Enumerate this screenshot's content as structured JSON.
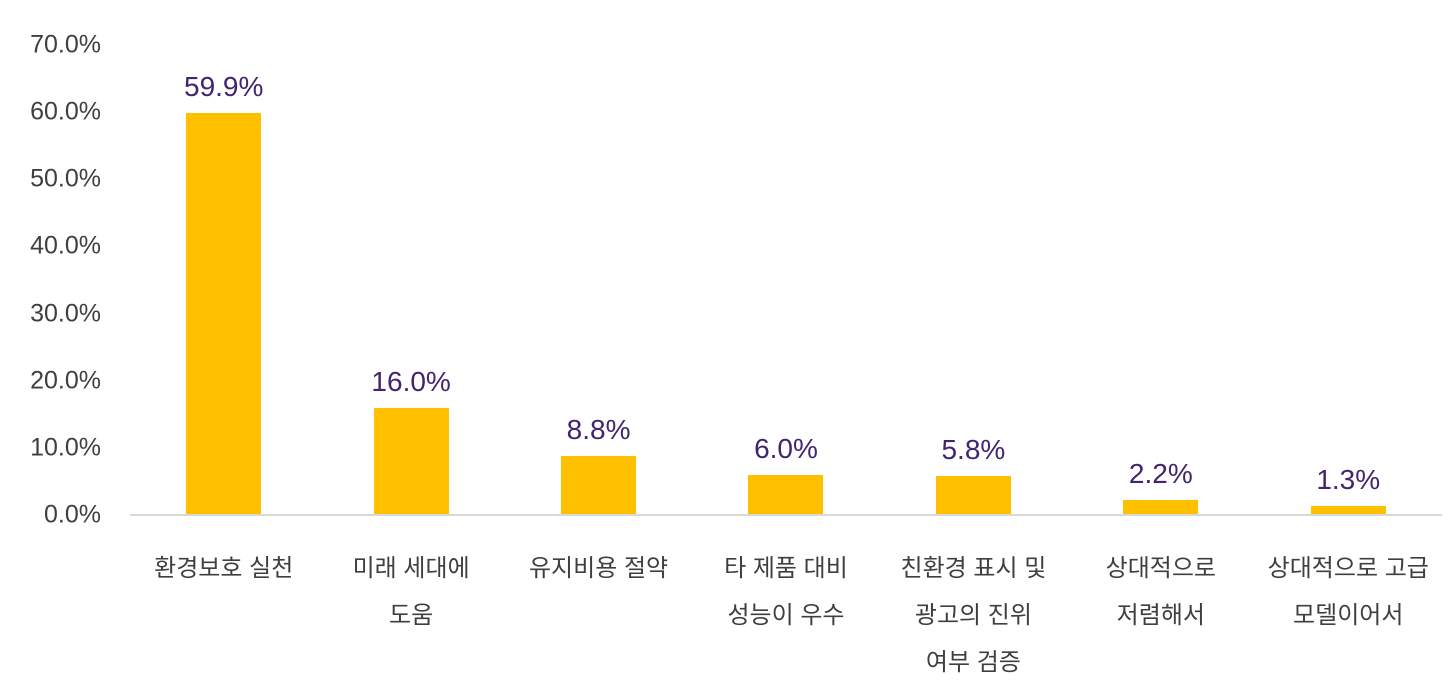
{
  "chart": {
    "colors": {
      "bar": "#FFC000",
      "value_label": "#43256F",
      "text": "#3F3F3F",
      "axis_line": "#D9D9D9"
    }
  },
  "chart_data": {
    "type": "bar",
    "title": "",
    "xlabel": "",
    "ylabel": "",
    "grid": false,
    "legend": false,
    "ylim": [
      0,
      70
    ],
    "y_ticks": [
      {
        "value": 70,
        "label": "70.0%"
      },
      {
        "value": 60,
        "label": "60.0%"
      },
      {
        "value": 50,
        "label": "50.0%"
      },
      {
        "value": 40,
        "label": "40.0%"
      },
      {
        "value": 30,
        "label": "30.0%"
      },
      {
        "value": 20,
        "label": "20.0%"
      },
      {
        "value": 10,
        "label": "10.0%"
      },
      {
        "value": 0,
        "label": "0.0%"
      }
    ],
    "categories": [
      "환경보호 실천",
      "미래 세대에 도움",
      "유지비용 절약",
      "타 제품 대비 성능이 우수",
      "친환경 표시 및 광고의 진위 여부 검증",
      "상대적으로 저렴해서",
      "상대적으로 고급 모델이어서"
    ],
    "category_lines": [
      [
        "환경보호 실천"
      ],
      [
        "미래 세대에",
        "도움"
      ],
      [
        "유지비용 절약"
      ],
      [
        "타 제품 대비",
        "성능이 우수"
      ],
      [
        "친환경 표시 및",
        "광고의 진위",
        "여부 검증"
      ],
      [
        "상대적으로",
        "저렴해서"
      ],
      [
        "상대적으로 고급",
        "모델이어서"
      ]
    ],
    "values": [
      59.9,
      16.0,
      8.8,
      6.0,
      5.8,
      2.2,
      1.3
    ],
    "value_labels": [
      "59.9%",
      "16.0%",
      "8.8%",
      "6.0%",
      "5.8%",
      "2.2%",
      "1.3%"
    ]
  }
}
